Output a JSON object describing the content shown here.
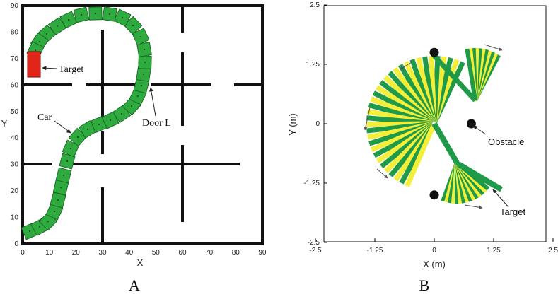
{
  "panelA": {
    "label": "A",
    "xlabel": "X",
    "ylabel": "Y",
    "xticks": [
      "0",
      "10",
      "20",
      "30",
      "40",
      "50",
      "60",
      "70",
      "80",
      "90"
    ],
    "yticks": [
      "0",
      "10",
      "20",
      "30",
      "40",
      "50",
      "60",
      "70",
      "80",
      "90"
    ],
    "annotations": {
      "target": "Target",
      "car": "Car",
      "door": "Door L"
    },
    "colors": {
      "car_fill": "#2eaa3f",
      "target_fill": "#e3241b"
    }
  },
  "panelB": {
    "label": "B",
    "xlabel": "X (m)",
    "ylabel": "Y (m)",
    "xticks": [
      "-2.5",
      "-1.25",
      "0",
      "1.25",
      "2.5"
    ],
    "yticks": [
      "2.5",
      "1.25",
      "0",
      "-1.25",
      "-2.5"
    ],
    "annotations": {
      "obstacle": "Obstacle",
      "target": "Target"
    },
    "colors": {
      "green": "#1f9a48",
      "yellow": "#f2ee3a"
    }
  }
}
